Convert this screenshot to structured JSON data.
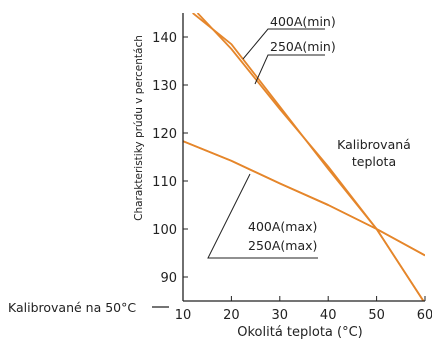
{
  "chart_data": {
    "type": "line",
    "xlabel": "Okolitá teplota (°C)",
    "ylabel": "Charakteristiky prúdu v percentách",
    "xlim": [
      10,
      60
    ],
    "ylim": [
      85,
      145
    ],
    "x_ticks": [
      10,
      20,
      30,
      40,
      50,
      60
    ],
    "y_ticks": [
      90,
      100,
      110,
      120,
      130,
      140
    ],
    "x_tick_labels": [
      "10",
      "20",
      "30",
      "40",
      "50",
      "60"
    ],
    "y_tick_labels": [
      "90",
      "100",
      "110",
      "120",
      "130",
      "140"
    ],
    "grid": false,
    "series": [
      {
        "name": "400A(min)",
        "x": [
          12,
          20,
          30,
          40,
          50,
          60
        ],
        "y": [
          145,
          138.5,
          125.5,
          112.5,
          100,
          84.5
        ]
      },
      {
        "name": "250A(min)",
        "x": [
          13,
          20,
          30,
          40,
          50,
          60
        ],
        "y": [
          145,
          137.5,
          125,
          113,
          100,
          84.5
        ]
      },
      {
        "name": "400A(max)",
        "x": [
          10,
          20,
          30,
          40,
          50,
          60
        ],
        "y": [
          118.3,
          114.2,
          109.5,
          105,
          100,
          94.5
        ]
      },
      {
        "name": "250A(max)",
        "x": [
          10,
          20,
          30,
          40,
          50,
          60
        ],
        "y": [
          118.3,
          114.2,
          109.5,
          105,
          100,
          94.5
        ]
      }
    ],
    "annotations": {
      "min_top": "400A(min)",
      "min_bottom": "250A(min)",
      "max_top": "400A(max)",
      "max_bottom": "250A(max)",
      "calibration_line1": "Kalibrovaná",
      "calibration_line2": "teplota",
      "calibrated_at": "Kalibrované na 50°C"
    }
  }
}
